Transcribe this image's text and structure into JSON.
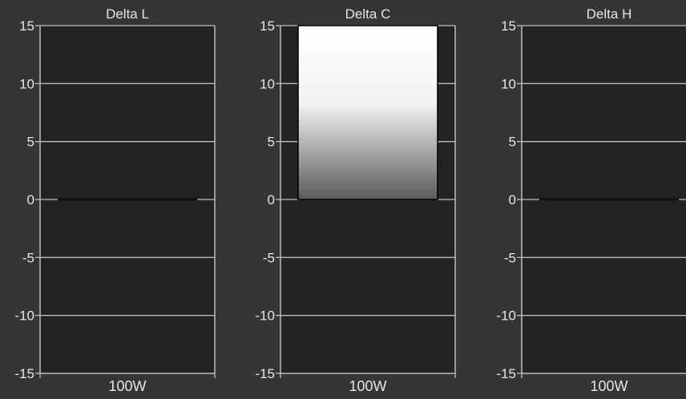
{
  "colors": {
    "page_background": "#353535",
    "plot_background": "#232323",
    "gridline": "#bdbdbd",
    "text": "#e6e6e6",
    "bar_gradient_top": "#ffffff",
    "bar_gradient_bottom": "#5a5a5a",
    "zero_bar": "#111111"
  },
  "chart_data": [
    {
      "type": "bar",
      "title": "Delta L",
      "categories": [
        "100W"
      ],
      "values": [
        0
      ],
      "ylim": [
        -15,
        15
      ],
      "yticks": [
        15,
        10,
        5,
        0,
        -5,
        -10,
        -15
      ],
      "grid": true
    },
    {
      "type": "bar",
      "title": "Delta C",
      "categories": [
        "100W"
      ],
      "values": [
        15
      ],
      "ylim": [
        -15,
        15
      ],
      "yticks": [
        15,
        10,
        5,
        0,
        -5,
        -10,
        -15
      ],
      "grid": true,
      "note_clipped": true
    },
    {
      "type": "bar",
      "title": "Delta H",
      "categories": [
        "100W"
      ],
      "values": [
        0
      ],
      "ylim": [
        -15,
        15
      ],
      "yticks": [
        15,
        10,
        5,
        0,
        -5,
        -10,
        -15
      ],
      "grid": true
    }
  ]
}
